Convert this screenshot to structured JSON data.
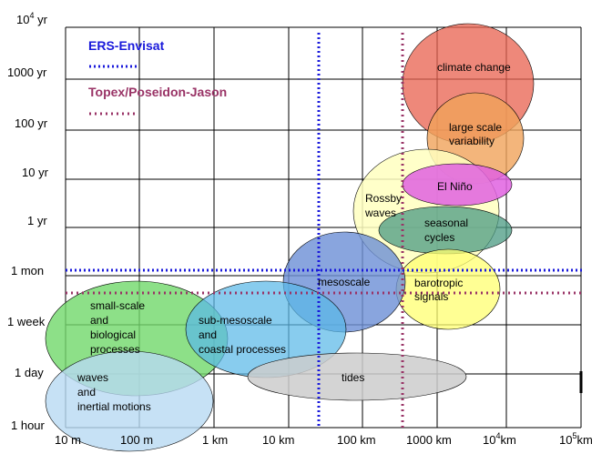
{
  "y_axis": {
    "ticks": [
      {
        "pre": "10",
        "sup": "4",
        "post": " yr"
      },
      {
        "pre": "1000 yr",
        "sup": "",
        "post": ""
      },
      {
        "pre": "100 yr",
        "sup": "",
        "post": ""
      },
      {
        "pre": "10 yr",
        "sup": "",
        "post": ""
      },
      {
        "pre": "1 yr",
        "sup": "",
        "post": ""
      },
      {
        "pre": "1 mon",
        "sup": "",
        "post": ""
      },
      {
        "pre": "1 week",
        "sup": "",
        "post": ""
      },
      {
        "pre": "1 day",
        "sup": "",
        "post": ""
      },
      {
        "pre": "1 hour",
        "sup": "",
        "post": ""
      }
    ]
  },
  "x_axis": {
    "ticks": [
      {
        "pre": "10 m",
        "sup": "",
        "post": ""
      },
      {
        "pre": "100 m",
        "sup": "",
        "post": ""
      },
      {
        "pre": "1 km",
        "sup": "",
        "post": ""
      },
      {
        "pre": "10 km",
        "sup": "",
        "post": ""
      },
      {
        "pre": "100 km",
        "sup": "",
        "post": ""
      },
      {
        "pre": "1000 km",
        "sup": "",
        "post": ""
      },
      {
        "pre": "10",
        "sup": "4",
        "post": "km"
      },
      {
        "pre": "10",
        "sup": "5",
        "post": "km"
      }
    ]
  },
  "legend": {
    "ers": {
      "label": "ERS-Envisat",
      "color": "#1a1adb"
    },
    "topex": {
      "label": "Topex/Poseidon-Jason",
      "color": "#993366"
    }
  },
  "phenomena": {
    "climate_change": {
      "lines": [
        "climate change"
      ],
      "fill": "#e8604d"
    },
    "large_scale": {
      "lines": [
        "large scale",
        "variability"
      ],
      "fill": "#f0a35a"
    },
    "rossby": {
      "lines": [
        "Rossby",
        "waves"
      ],
      "fill": "#ffffc0"
    },
    "el_nino": {
      "lines": [
        "El Niño"
      ],
      "fill": "#e061e0"
    },
    "seasonal": {
      "lines": [
        "seasonal",
        "cycles"
      ],
      "fill": "#4a9a82"
    },
    "barotropic": {
      "lines": [
        "barotropic",
        "signals"
      ],
      "fill": "#ffff70"
    },
    "mesoscale": {
      "lines": [
        "mesoscale"
      ],
      "fill": "#6b8fd6"
    },
    "small_scale": {
      "lines": [
        "small-scale",
        "and",
        "biological",
        "processes"
      ],
      "fill": "#70d86a"
    },
    "sub_mesoscale": {
      "lines": [
        "sub-mesoscale",
        "and",
        "coastal processes"
      ],
      "fill": "#5ab8e8"
    },
    "tides": {
      "lines": [
        "tides"
      ],
      "fill": "#cccccc"
    },
    "waves": {
      "lines": [
        "waves",
        "and",
        "inertial motions"
      ],
      "fill": "#b8daf2"
    }
  }
}
